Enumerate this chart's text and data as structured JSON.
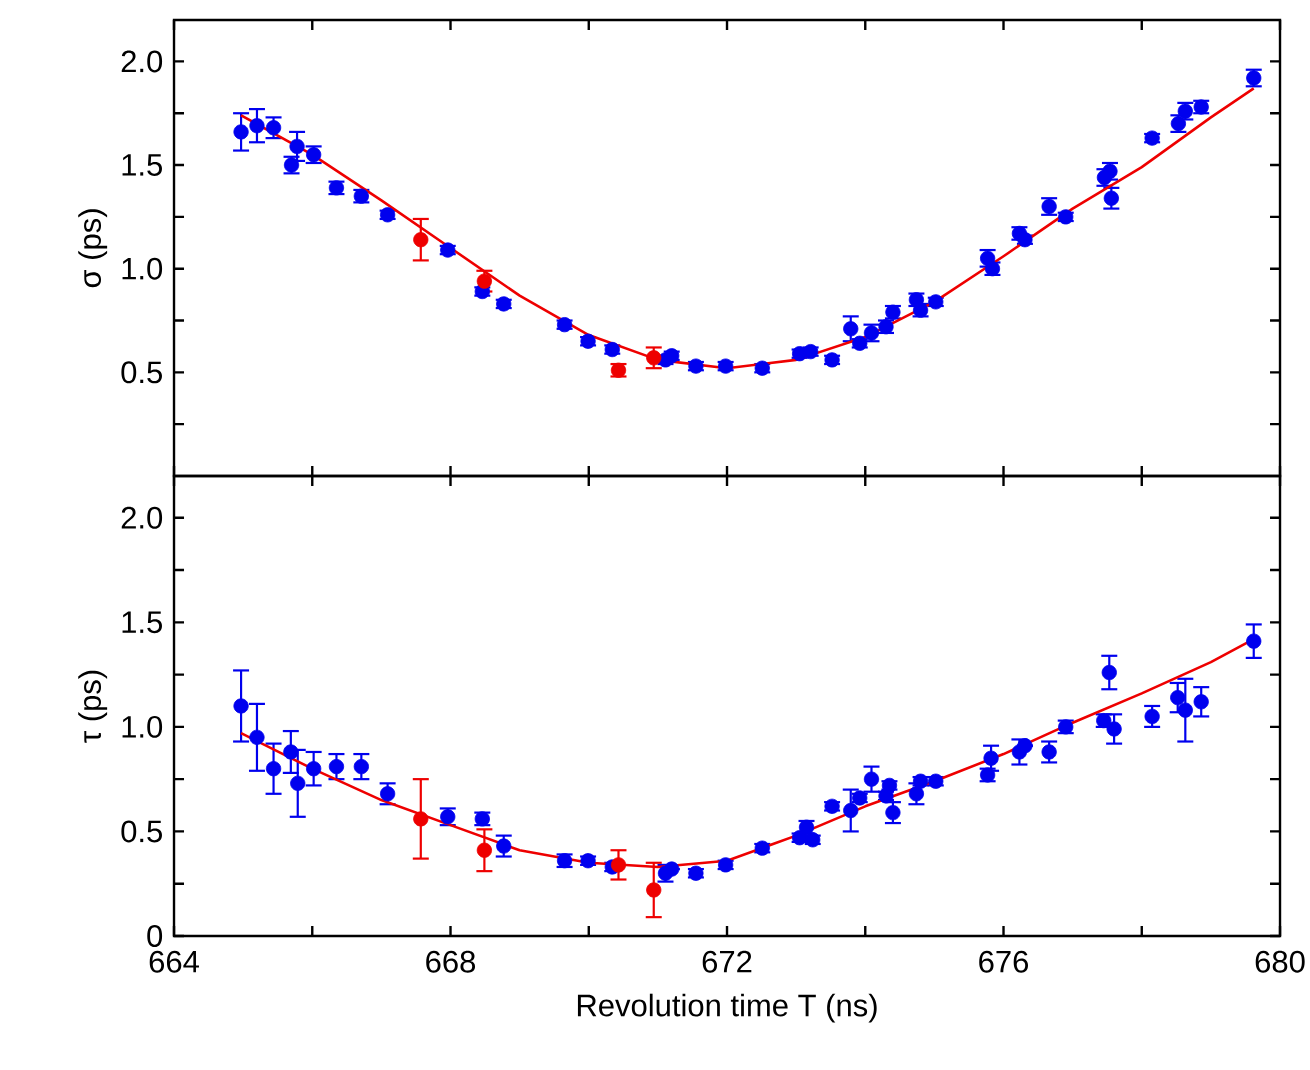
{
  "chart_data": [
    {
      "type": "scatter",
      "ylabel": "σ (ps)",
      "xlim": [
        664,
        680
      ],
      "ylim": [
        0,
        2.2
      ],
      "xticks": [
        664,
        {
          "value": 666,
          "label": null
        },
        668,
        {
          "value": 670,
          "label": null
        },
        672,
        {
          "value": 674,
          "label": null
        },
        676,
        {
          "value": 678,
          "label": null
        },
        680
      ],
      "yticks": [
        {
          "value": 0.25,
          "label": null
        },
        {
          "value": 0.5,
          "label": "0.5"
        },
        {
          "value": 0.75,
          "label": null
        },
        {
          "value": 1,
          "label": "1.0"
        },
        {
          "value": 1.25,
          "label": null
        },
        {
          "value": 1.5,
          "label": "1.5"
        },
        {
          "value": 1.75,
          "label": null
        },
        {
          "value": 2,
          "label": "2.0"
        }
      ],
      "tick_labels": "y",
      "marker": "circle",
      "series": [
        {
          "color": "#0000ee",
          "x": [
            664.97,
            665.2,
            665.44,
            665.78,
            665.7,
            666.02,
            666.35,
            666.71,
            667.09,
            667.96,
            668.46,
            668.77,
            669.65,
            669.99,
            670.34,
            671.11,
            671.2,
            671.55,
            671.98,
            672.51,
            673.05,
            673.21,
            673.52,
            673.79,
            673.92,
            674.09,
            674.3,
            674.4,
            674.74,
            674.8,
            675.02,
            675.77,
            675.84,
            676.23,
            676.31,
            676.66,
            676.9,
            677.54,
            677.46,
            677.56,
            678.15,
            678.53,
            678.63,
            678.86,
            679.62
          ],
          "values": [
            1.66,
            1.69,
            1.68,
            1.59,
            1.5,
            1.55,
            1.39,
            1.35,
            1.26,
            1.09,
            0.89,
            0.83,
            0.73,
            0.65,
            0.61,
            0.56,
            0.58,
            0.53,
            0.53,
            0.52,
            0.59,
            0.6,
            0.56,
            0.71,
            0.64,
            0.69,
            0.72,
            0.79,
            0.85,
            0.8,
            0.84,
            1.05,
            1.0,
            1.17,
            1.14,
            1.3,
            1.25,
            1.47,
            1.44,
            1.34,
            1.63,
            1.7,
            1.76,
            1.78,
            1.92
          ],
          "errors": [
            0.09,
            0.08,
            0.05,
            0.07,
            0.04,
            0.04,
            0.03,
            0.03,
            0.02,
            0.02,
            0.02,
            0.02,
            0.02,
            0.02,
            0.02,
            0.02,
            0.02,
            0.02,
            0.02,
            0.02,
            0.02,
            0.02,
            0.02,
            0.06,
            0.02,
            0.04,
            0.03,
            0.03,
            0.03,
            0.03,
            0.02,
            0.04,
            0.03,
            0.03,
            0.02,
            0.04,
            0.02,
            0.04,
            0.04,
            0.05,
            0.02,
            0.04,
            0.04,
            0.03,
            0.04
          ]
        },
        {
          "color": "#ee0000",
          "x": [
            667.57,
            668.49,
            670.43,
            670.94
          ],
          "values": [
            1.14,
            0.94,
            0.51,
            0.57
          ],
          "errors": [
            0.1,
            0.05,
            0.03,
            0.05
          ]
        },
        {
          "type": "line",
          "marker": "none",
          "line_style": "solid",
          "color": "#ee0000",
          "x": [
            664.97,
            666,
            667,
            668,
            669,
            670,
            671,
            672,
            673,
            674,
            675,
            676,
            677,
            678,
            679,
            679.62
          ],
          "values": [
            1.74,
            1.55,
            1.33,
            1.1,
            0.87,
            0.68,
            0.56,
            0.52,
            0.56,
            0.67,
            0.84,
            1.06,
            1.29,
            1.49,
            1.73,
            1.87
          ]
        }
      ]
    },
    {
      "type": "scatter",
      "ylabel": "τ (ps)",
      "xlabel": "Revolution time T (ns)",
      "xlim": [
        664,
        680
      ],
      "ylim": [
        0,
        2.2
      ],
      "xticks": [
        664,
        {
          "value": 666,
          "label": null
        },
        668,
        {
          "value": 670,
          "label": null
        },
        672,
        {
          "value": 674,
          "label": null
        },
        676,
        {
          "value": 678,
          "label": null
        },
        680
      ],
      "yticks": [
        0,
        {
          "value": 0.25,
          "label": null
        },
        {
          "value": 0.5,
          "label": "0.5"
        },
        {
          "value": 0.75,
          "label": null
        },
        {
          "value": 1,
          "label": "1.0"
        },
        {
          "value": 1.25,
          "label": null
        },
        {
          "value": 1.5,
          "label": "1.5"
        },
        {
          "value": 1.75,
          "label": null
        },
        {
          "value": 2,
          "label": "2.0"
        }
      ],
      "marker": "circle",
      "series": [
        {
          "color": "#0000ee",
          "x": [
            664.97,
            665.2,
            665.44,
            665.69,
            665.79,
            666.02,
            666.35,
            666.71,
            667.09,
            667.96,
            668.46,
            668.77,
            669.65,
            669.99,
            670.34,
            671.11,
            671.2,
            671.55,
            671.98,
            672.51,
            673.05,
            673.15,
            673.24,
            673.52,
            673.79,
            673.92,
            674.09,
            674.3,
            674.35,
            674.4,
            674.74,
            674.8,
            675.02,
            675.77,
            675.82,
            676.23,
            676.31,
            676.66,
            676.9,
            677.53,
            677.45,
            677.6,
            678.15,
            678.52,
            678.63,
            678.86,
            679.62
          ],
          "values": [
            1.1,
            0.95,
            0.8,
            0.88,
            0.73,
            0.8,
            0.81,
            0.81,
            0.68,
            0.57,
            0.56,
            0.43,
            0.36,
            0.36,
            0.33,
            0.3,
            0.32,
            0.3,
            0.34,
            0.42,
            0.47,
            0.52,
            0.46,
            0.62,
            0.6,
            0.66,
            0.75,
            0.67,
            0.72,
            0.59,
            0.68,
            0.74,
            0.74,
            0.77,
            0.85,
            0.88,
            0.91,
            0.88,
            1.0,
            1.26,
            1.03,
            0.99,
            1.05,
            1.14,
            1.08,
            1.12,
            1.41
          ],
          "errors": [
            0.17,
            0.16,
            0.12,
            0.1,
            0.16,
            0.08,
            0.06,
            0.06,
            0.05,
            0.04,
            0.03,
            0.05,
            0.03,
            0.02,
            0.02,
            0.04,
            null,
            0.02,
            0.02,
            0.02,
            0.02,
            0.03,
            0.02,
            0.02,
            0.1,
            0.02,
            0.06,
            0.02,
            0.02,
            0.05,
            0.05,
            0.02,
            0.02,
            0.03,
            0.06,
            0.06,
            null,
            0.05,
            0.03,
            0.08,
            0.03,
            0.07,
            0.05,
            0.07,
            0.15,
            0.07,
            0.08
          ]
        },
        {
          "color": "#ee0000",
          "x": [
            667.57,
            668.49,
            670.43,
            670.94
          ],
          "values": [
            0.56,
            0.41,
            0.34,
            0.22
          ],
          "errors": [
            0.19,
            0.1,
            0.07,
            0.13
          ]
        },
        {
          "type": "line",
          "marker": "none",
          "line_style": "solid",
          "color": "#ee0000",
          "x": [
            664.97,
            666,
            667,
            668,
            669,
            670,
            671,
            672,
            673,
            674,
            675,
            676,
            677,
            678,
            679,
            679.62
          ],
          "values": [
            0.97,
            0.8,
            0.65,
            0.53,
            0.41,
            0.35,
            0.33,
            0.36,
            0.48,
            0.62,
            0.74,
            0.87,
            1.02,
            1.16,
            1.31,
            1.42
          ]
        }
      ]
    }
  ]
}
